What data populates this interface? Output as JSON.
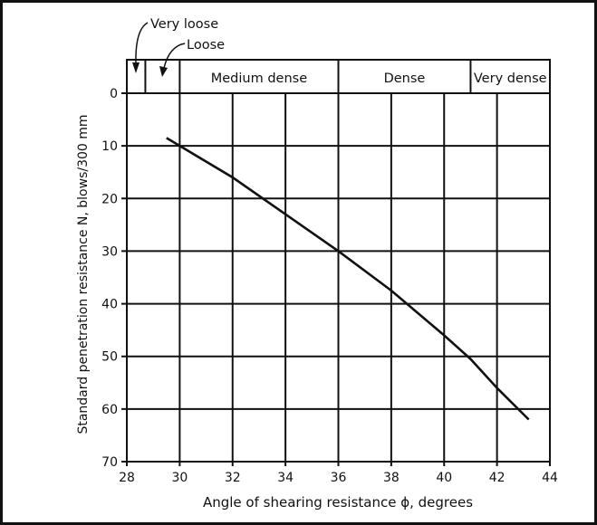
{
  "chart_data": {
    "type": "line",
    "xlabel": "Angle of shearing resistance ϕ, degrees",
    "ylabel": "Standard penetration resistance N, blows/300 mm",
    "xlim": [
      28,
      44
    ],
    "ylim": [
      0,
      70
    ],
    "y_inverted": true,
    "grid": true,
    "xticks": [
      "28",
      "30",
      "32",
      "34",
      "36",
      "38",
      "40",
      "42",
      "44"
    ],
    "yticks": [
      "0",
      "10",
      "20",
      "30",
      "40",
      "50",
      "60",
      "70"
    ],
    "series": [
      {
        "name": "N vs phi",
        "x": [
          29.5,
          30,
          32,
          34,
          36,
          38,
          40,
          41,
          42,
          43.2
        ],
        "y": [
          8.5,
          10,
          16,
          23,
          30,
          37.5,
          46,
          50.5,
          56,
          62
        ]
      }
    ],
    "zones": [
      {
        "label": "Very loose",
        "from": 28,
        "to": 28.7
      },
      {
        "label": "Loose",
        "from": 28.7,
        "to": 30
      },
      {
        "label": "Medium dense",
        "from": 30,
        "to": 36
      },
      {
        "label": "Dense",
        "from": 36,
        "to": 41
      },
      {
        "label": "Very dense",
        "from": 41,
        "to": 44
      }
    ]
  }
}
